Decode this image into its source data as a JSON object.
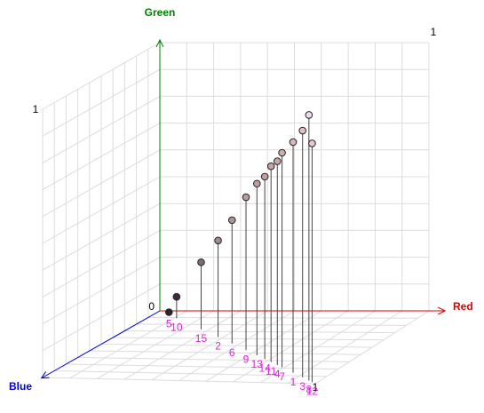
{
  "chart_data": {
    "type": "scatter3d",
    "axes": {
      "x": "Red",
      "y": "Green",
      "z": "Blue"
    },
    "axis_colors": {
      "x": "#e00000",
      "y": "#008000",
      "z": "#0000e0"
    },
    "origin_tick": 0,
    "x_tick": 1,
    "y_tick": 1,
    "z_tick": 1,
    "points": [
      {
        "label": "1",
        "r": 0.86,
        "g": 0.86,
        "b": 0.86,
        "color": "#d8b8b8"
      },
      {
        "label": "2",
        "r": 0.38,
        "g": 0.36,
        "b": 0.38,
        "color": "#a08c8c"
      },
      {
        "label": "3",
        "r": 0.92,
        "g": 0.92,
        "b": 0.92,
        "color": "#e0c0c0"
      },
      {
        "label": "4",
        "r": 0.76,
        "g": 0.76,
        "b": 0.76,
        "color": "#c8a8a8"
      },
      {
        "label": "5",
        "r": 0.06,
        "g": 0.01,
        "b": 0.06,
        "color": "#302030"
      },
      {
        "label": "6",
        "r": 0.47,
        "g": 0.46,
        "b": 0.47,
        "color": "#ac9494"
      },
      {
        "label": "7",
        "r": 0.79,
        "g": 0.8,
        "b": 0.79,
        "color": "#ccacac"
      },
      {
        "label": "8",
        "r": 0.96,
        "g": 0.99,
        "b": 0.96,
        "color": "#f0d8f0"
      },
      {
        "label": "9",
        "r": 0.56,
        "g": 0.57,
        "b": 0.56,
        "color": "#b89c9c"
      },
      {
        "label": "10",
        "r": 0.11,
        "g": 0.08,
        "b": 0.11,
        "color": "#3c2c3c"
      },
      {
        "label": "11",
        "r": 0.72,
        "g": 0.73,
        "b": 0.72,
        "color": "#c4a4a4"
      },
      {
        "label": "12",
        "r": 0.98,
        "g": 0.89,
        "b": 0.98,
        "color": "#e8c8c8"
      },
      {
        "label": "13",
        "r": 0.63,
        "g": 0.64,
        "b": 0.63,
        "color": "#bca0a0"
      },
      {
        "label": "14",
        "r": 0.68,
        "g": 0.68,
        "b": 0.68,
        "color": "#c0a0a0"
      },
      {
        "label": "15",
        "r": 0.27,
        "g": 0.25,
        "b": 0.27,
        "color": "#806c6c"
      }
    ]
  }
}
